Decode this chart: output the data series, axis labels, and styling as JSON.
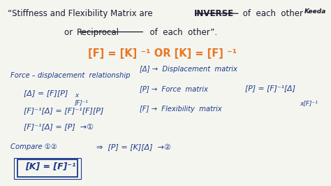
{
  "bg_color": "#f5f5f0",
  "text_color_dark": "#1a1a2e",
  "text_color_orange": "#e87722",
  "text_color_handwrite": "#1a3a8a",
  "title1_pre": "“Stiffness and Flexibility Matrix are ",
  "title1_inv": "INVERSE",
  "title1_post": " of  each  other",
  "title2_pre": "or  ",
  "title2_recip": "Reciprocal",
  "title2_post": "  of  each  other”.",
  "formula": "[F] = [K] ⁻¹ OR [K] = [F] ⁻¹",
  "logo": "Keeda",
  "body_label": "Force – displacement  relationship",
  "eq1": "[Δ] = [F][P]",
  "eq1_annot": "x\n[F]⁻¹",
  "eq2": "[F]⁻¹[Δ] = [F]⁻¹[F][P]",
  "eq3": "[F]⁻¹[Δ] = [P]  →①",
  "compare": "Compare ①②",
  "arrow_eq": "⇒  [P] = [K][Δ]  →②",
  "box_eq": "[K] = [F]⁻¹",
  "def1": "[Δ] →  Displacement  matrix",
  "def2": "[P] →  Force  matrix",
  "def3": "[F] →  Flexibility  matrix",
  "far_eq": "[P] = [F]⁻¹[Δ]",
  "far_annot": "x[F]⁻¹"
}
